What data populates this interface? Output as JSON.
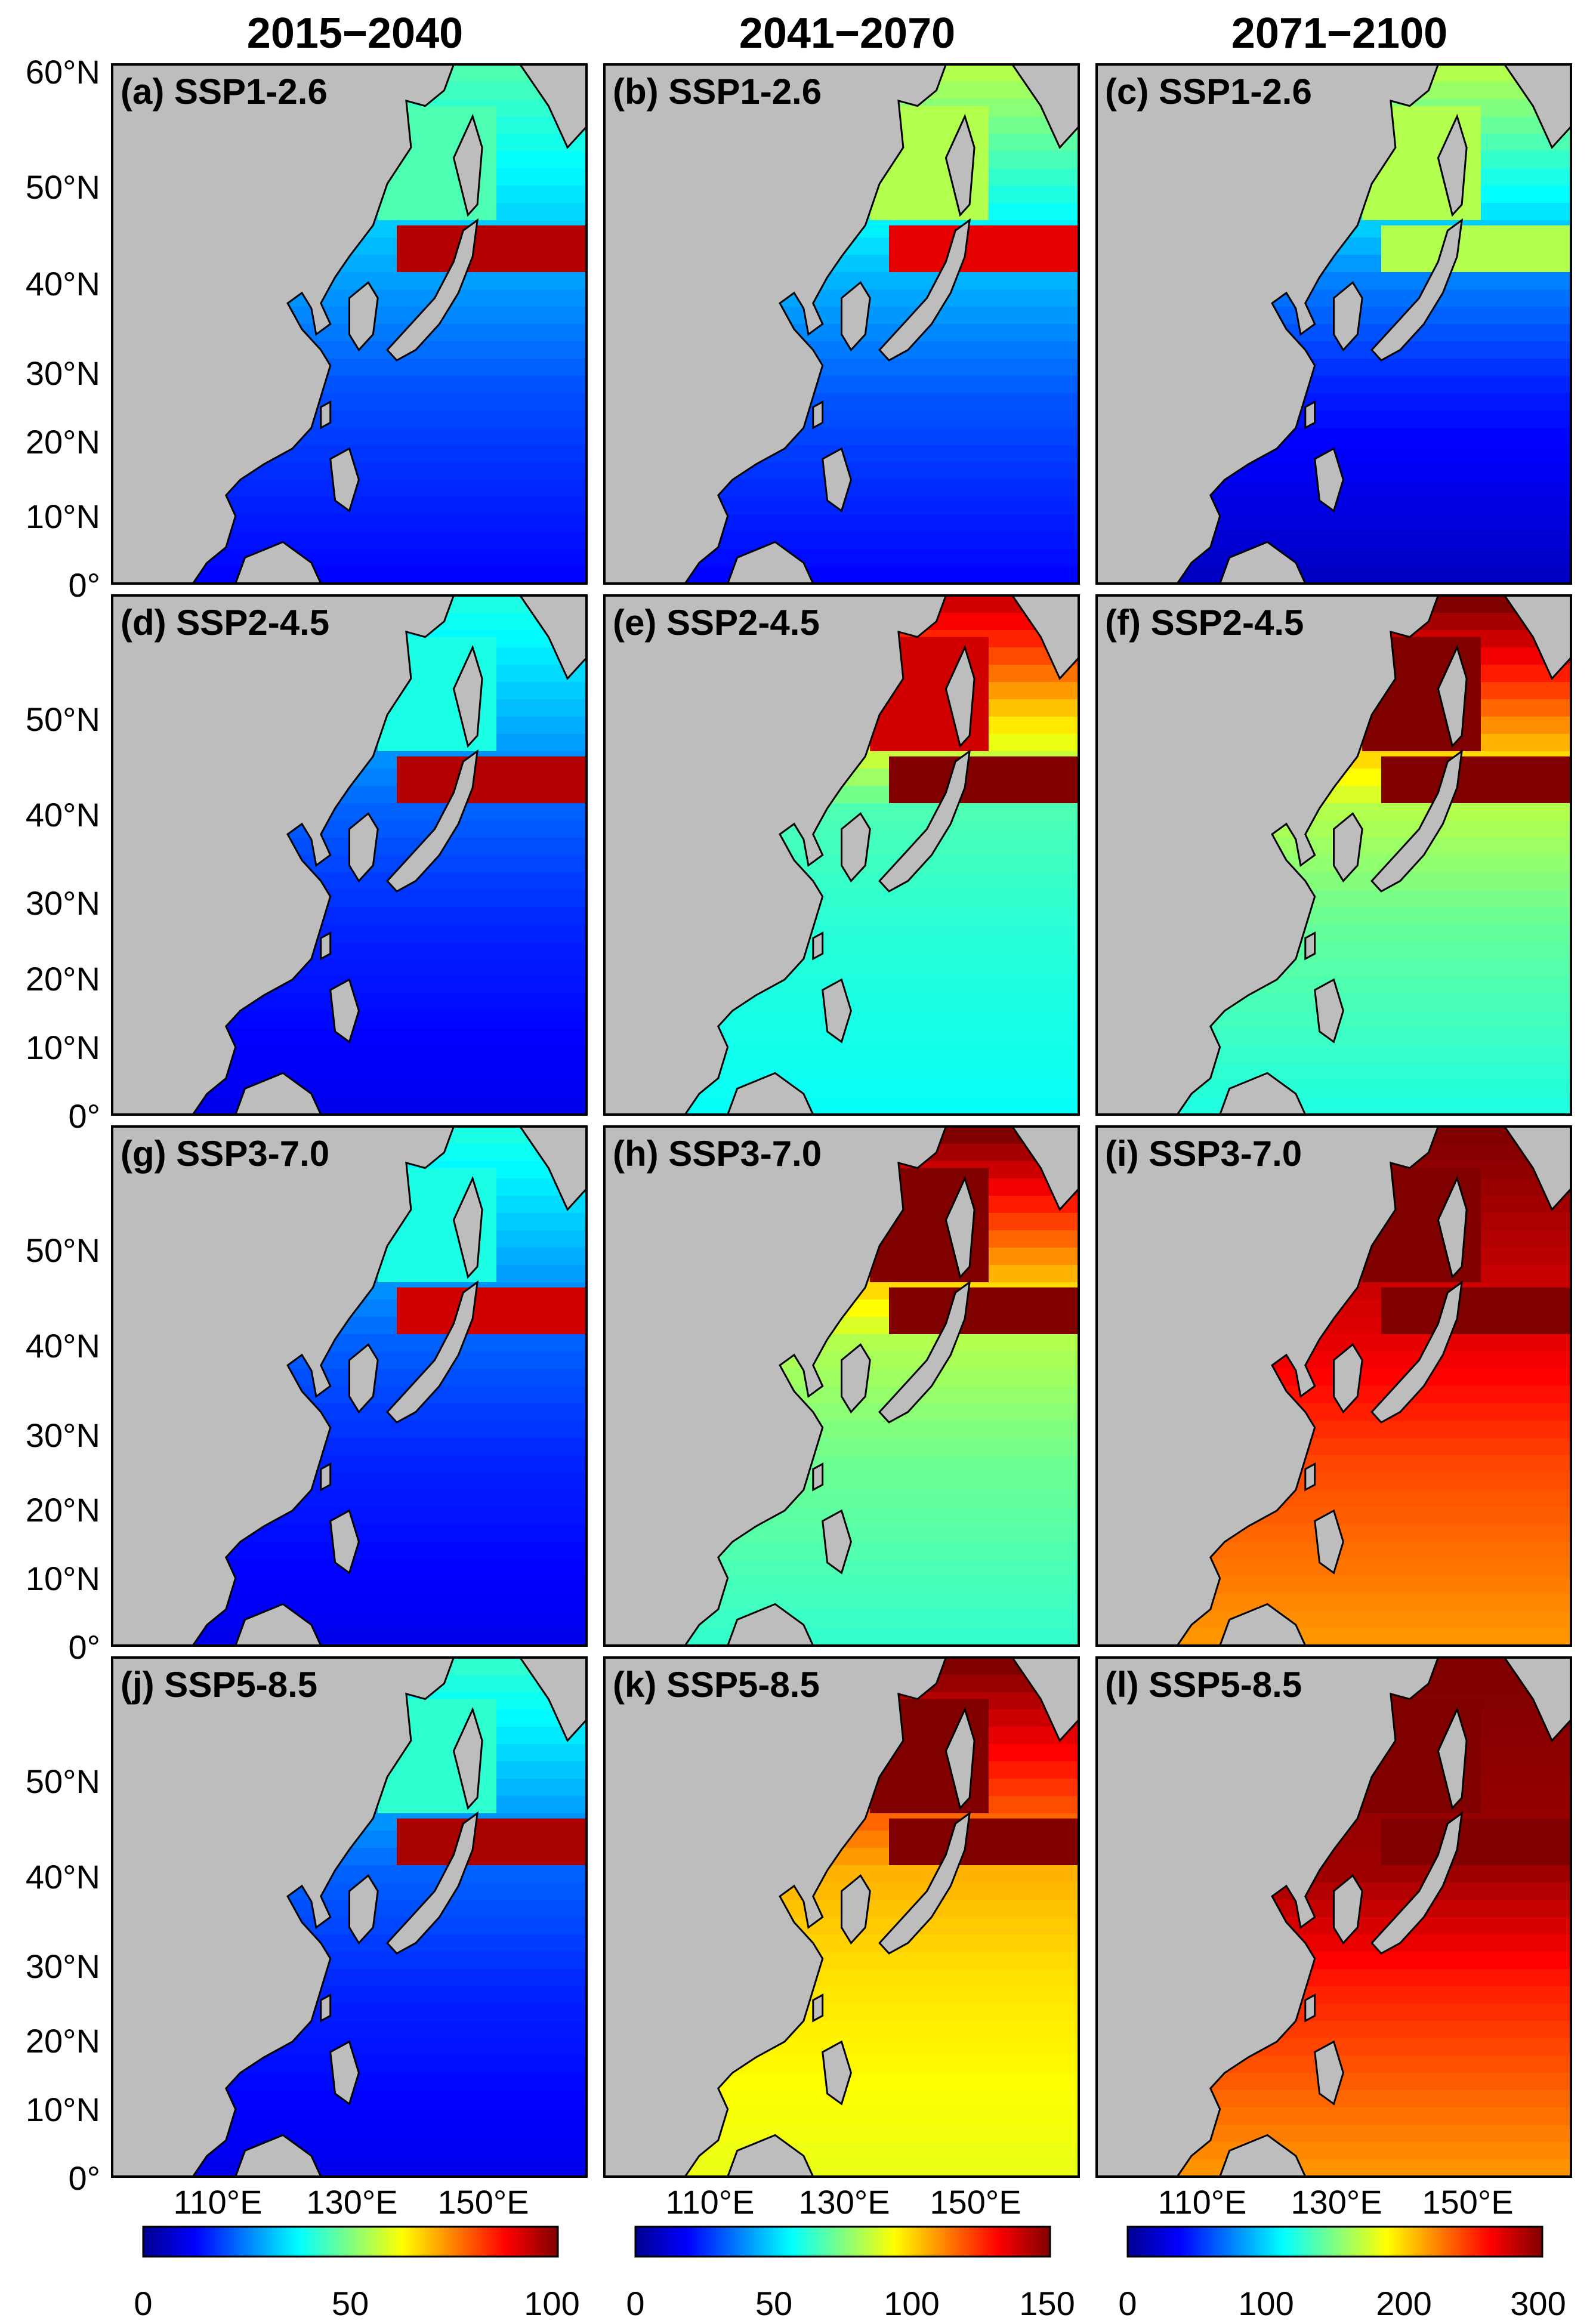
{
  "columns": [
    {
      "title": "2015−2040"
    },
    {
      "title": "2041−2070"
    },
    {
      "title": "2071−2100"
    }
  ],
  "panels": [
    {
      "label": "(a) SSP1-2.6",
      "scenario": "SSP1-2.6",
      "period": "2015−2040",
      "colorbar_max": 100,
      "pattern": {
        "base": 0.28,
        "north_band": 0.95,
        "south": 0.12,
        "seas": 0.45
      }
    },
    {
      "label": "(b) SSP1-2.6",
      "scenario": "SSP1-2.6",
      "period": "2041−2070",
      "colorbar_max": 150,
      "pattern": {
        "base": 0.3,
        "north_band": 0.9,
        "south": 0.12,
        "seas": 0.55
      }
    },
    {
      "label": "(c) SSP1-2.6",
      "scenario": "SSP1-2.6",
      "period": "2071−2100",
      "colorbar_max": 300,
      "pattern": {
        "base": 0.25,
        "north_band": 0.55,
        "south": 0.05,
        "seas": 0.55
      }
    },
    {
      "label": "(d) SSP2-4.5",
      "scenario": "SSP2-4.5",
      "period": "2015−2040",
      "colorbar_max": 100,
      "pattern": {
        "base": 0.22,
        "north_band": 0.95,
        "south": 0.1,
        "seas": 0.4
      }
    },
    {
      "label": "(e) SSP2-4.5",
      "scenario": "SSP2-4.5",
      "period": "2041−2070",
      "colorbar_max": 150,
      "pattern": {
        "base": 0.45,
        "north_band": 1.0,
        "south": 0.38,
        "seas": 0.92
      }
    },
    {
      "label": "(f) SSP2-4.5",
      "scenario": "SSP2-4.5",
      "period": "2071−2100",
      "colorbar_max": 300,
      "pattern": {
        "base": 0.55,
        "north_band": 1.0,
        "south": 0.4,
        "seas": 1.0
      }
    },
    {
      "label": "(g) SSP3-7.0",
      "scenario": "SSP3-7.0",
      "period": "2015−2040",
      "colorbar_max": 100,
      "pattern": {
        "base": 0.22,
        "north_band": 0.92,
        "south": 0.1,
        "seas": 0.4
      }
    },
    {
      "label": "(h) SSP3-7.0",
      "scenario": "SSP3-7.0",
      "period": "2041−2070",
      "colorbar_max": 150,
      "pattern": {
        "base": 0.55,
        "north_band": 1.0,
        "south": 0.42,
        "seas": 1.0
      }
    },
    {
      "label": "(i) SSP3-7.0",
      "scenario": "SSP3-7.0",
      "period": "2071−2100",
      "colorbar_max": 300,
      "pattern": {
        "base": 0.9,
        "north_band": 1.0,
        "south": 0.72,
        "seas": 1.0
      }
    },
    {
      "label": "(j) SSP5-8.5",
      "scenario": "SSP5-8.5",
      "period": "2015−2040",
      "colorbar_max": 100,
      "pattern": {
        "base": 0.22,
        "north_band": 0.96,
        "south": 0.1,
        "seas": 0.42
      }
    },
    {
      "label": "(k) SSP5-8.5",
      "scenario": "SSP5-8.5",
      "period": "2041−2070",
      "colorbar_max": 150,
      "pattern": {
        "base": 0.7,
        "north_band": 1.0,
        "south": 0.6,
        "seas": 1.0
      }
    },
    {
      "label": "(l) SSP5-8.5",
      "scenario": "SSP5-8.5",
      "period": "2071−2100",
      "colorbar_max": 300,
      "pattern": {
        "base": 0.97,
        "north_band": 1.0,
        "south": 0.72,
        "seas": 1.0
      }
    }
  ],
  "axes": {
    "lat_ticks": [
      "60°N",
      "50°N",
      "40°N",
      "30°N",
      "20°N",
      "10°N",
      "0°"
    ],
    "lat_values": [
      60,
      50,
      40,
      30,
      20,
      10,
      0
    ],
    "lon_ticks": [
      "110°E",
      "130°E",
      "150°E"
    ],
    "lon_values": [
      110,
      130,
      150
    ],
    "lon_range": [
      95,
      160
    ],
    "lat_range": [
      0,
      60
    ]
  },
  "colorbars": [
    {
      "ticks": [
        "0",
        "50",
        "100"
      ],
      "values": [
        0,
        50,
        100
      ]
    },
    {
      "ticks": [
        "0",
        "50",
        "100",
        "150"
      ],
      "values": [
        0,
        50,
        100,
        150
      ]
    },
    {
      "ticks": [
        "0",
        "100",
        "200",
        "300"
      ],
      "values": [
        0,
        100,
        200,
        300
      ]
    }
  ],
  "colors": {
    "land": "#bdbdbd",
    "coast": "#000000",
    "colormap": [
      "#00008f",
      "#0000ff",
      "#0080ff",
      "#00ffff",
      "#80ff80",
      "#ffff00",
      "#ff8000",
      "#ff0000",
      "#800000"
    ]
  }
}
